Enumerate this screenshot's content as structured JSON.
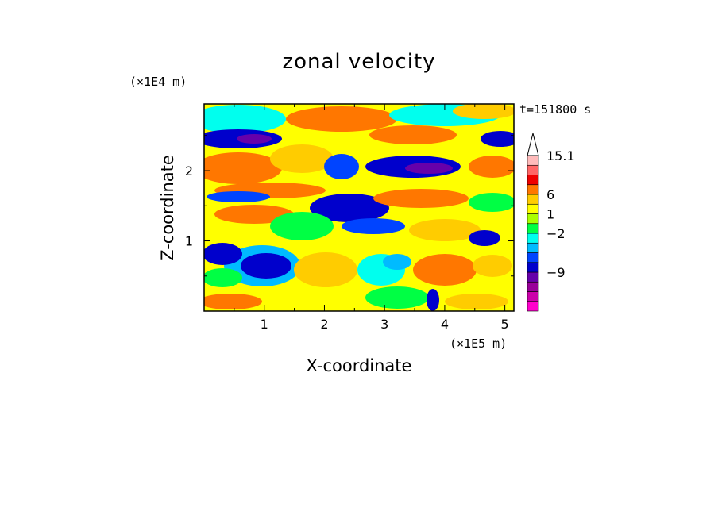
{
  "chart_data": {
    "type": "heatmap",
    "title": "zonal velocity",
    "xlabel": "X-coordinate",
    "ylabel": "Z-coordinate",
    "x_unit": "(×1E5 m)",
    "y_unit": "(×1E4 m)",
    "time_label": "t=151800 s",
    "xlim": [
      0,
      5.15
    ],
    "ylim": [
      0,
      2.95
    ],
    "x_ticks": [
      "1",
      "2",
      "3",
      "4",
      "5"
    ],
    "y_ticks": [
      "1",
      "2"
    ],
    "colorbar": {
      "levels": [
        -15,
        -12,
        -9,
        -6,
        -4,
        -2,
        -1,
        0,
        1,
        2,
        3,
        6,
        9,
        12,
        15.1
      ],
      "labels": [
        "15.1",
        "6",
        "1",
        "−2",
        "−9"
      ],
      "colors": [
        "#ff00cc",
        "#cc00aa",
        "#990099",
        "#6600aa",
        "#0000cc",
        "#0044ff",
        "#00bbff",
        "#00ffee",
        "#00ff44",
        "#aaff00",
        "#ffff00",
        "#ffcc00",
        "#ff7700",
        "#ee0000",
        "#ff6666",
        "#ffbbbb"
      ]
    },
    "grid": false
  }
}
